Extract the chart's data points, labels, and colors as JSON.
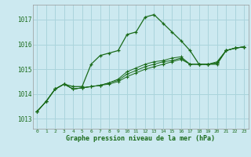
{
  "xlabel_bottom": "Graphe pression niveau de la mer (hPa)",
  "xlim": [
    -0.5,
    23.5
  ],
  "ylim": [
    1012.6,
    1017.6
  ],
  "yticks": [
    1013,
    1014,
    1015,
    1016,
    1017
  ],
  "xticks": [
    0,
    1,
    2,
    3,
    4,
    5,
    6,
    7,
    8,
    9,
    10,
    11,
    12,
    13,
    14,
    15,
    16,
    17,
    18,
    19,
    20,
    21,
    22,
    23
  ],
  "bg_color": "#cce9f0",
  "grid_color": "#aad4dc",
  "line_color": "#1a6b1a",
  "tick_color": "#1a6b1a",
  "series": [
    [
      1013.3,
      1013.7,
      1014.2,
      1014.4,
      1014.3,
      1014.3,
      1015.2,
      1015.55,
      1015.65,
      1015.75,
      1016.4,
      1016.5,
      1017.1,
      1017.2,
      1016.85,
      1016.5,
      1016.15,
      1015.75,
      1015.2,
      1015.2,
      1015.2,
      1015.75,
      1015.85,
      1015.9
    ],
    [
      1013.3,
      1013.7,
      1014.2,
      1014.4,
      1014.2,
      1014.25,
      1014.3,
      1014.35,
      1014.4,
      1014.5,
      1014.7,
      1014.85,
      1015.0,
      1015.1,
      1015.2,
      1015.3,
      1015.4,
      1015.2,
      1015.2,
      1015.2,
      1015.25,
      1015.75,
      1015.85,
      1015.9
    ],
    [
      1013.3,
      1013.7,
      1014.2,
      1014.4,
      1014.2,
      1014.25,
      1014.3,
      1014.35,
      1014.45,
      1014.55,
      1014.8,
      1014.95,
      1015.1,
      1015.2,
      1015.3,
      1015.35,
      1015.45,
      1015.2,
      1015.2,
      1015.2,
      1015.25,
      1015.75,
      1015.85,
      1015.9
    ],
    [
      1013.3,
      1013.7,
      1014.2,
      1014.4,
      1014.2,
      1014.25,
      1014.3,
      1014.35,
      1014.45,
      1014.6,
      1014.9,
      1015.05,
      1015.2,
      1015.3,
      1015.35,
      1015.45,
      1015.5,
      1015.2,
      1015.2,
      1015.2,
      1015.3,
      1015.75,
      1015.85,
      1015.9
    ]
  ]
}
